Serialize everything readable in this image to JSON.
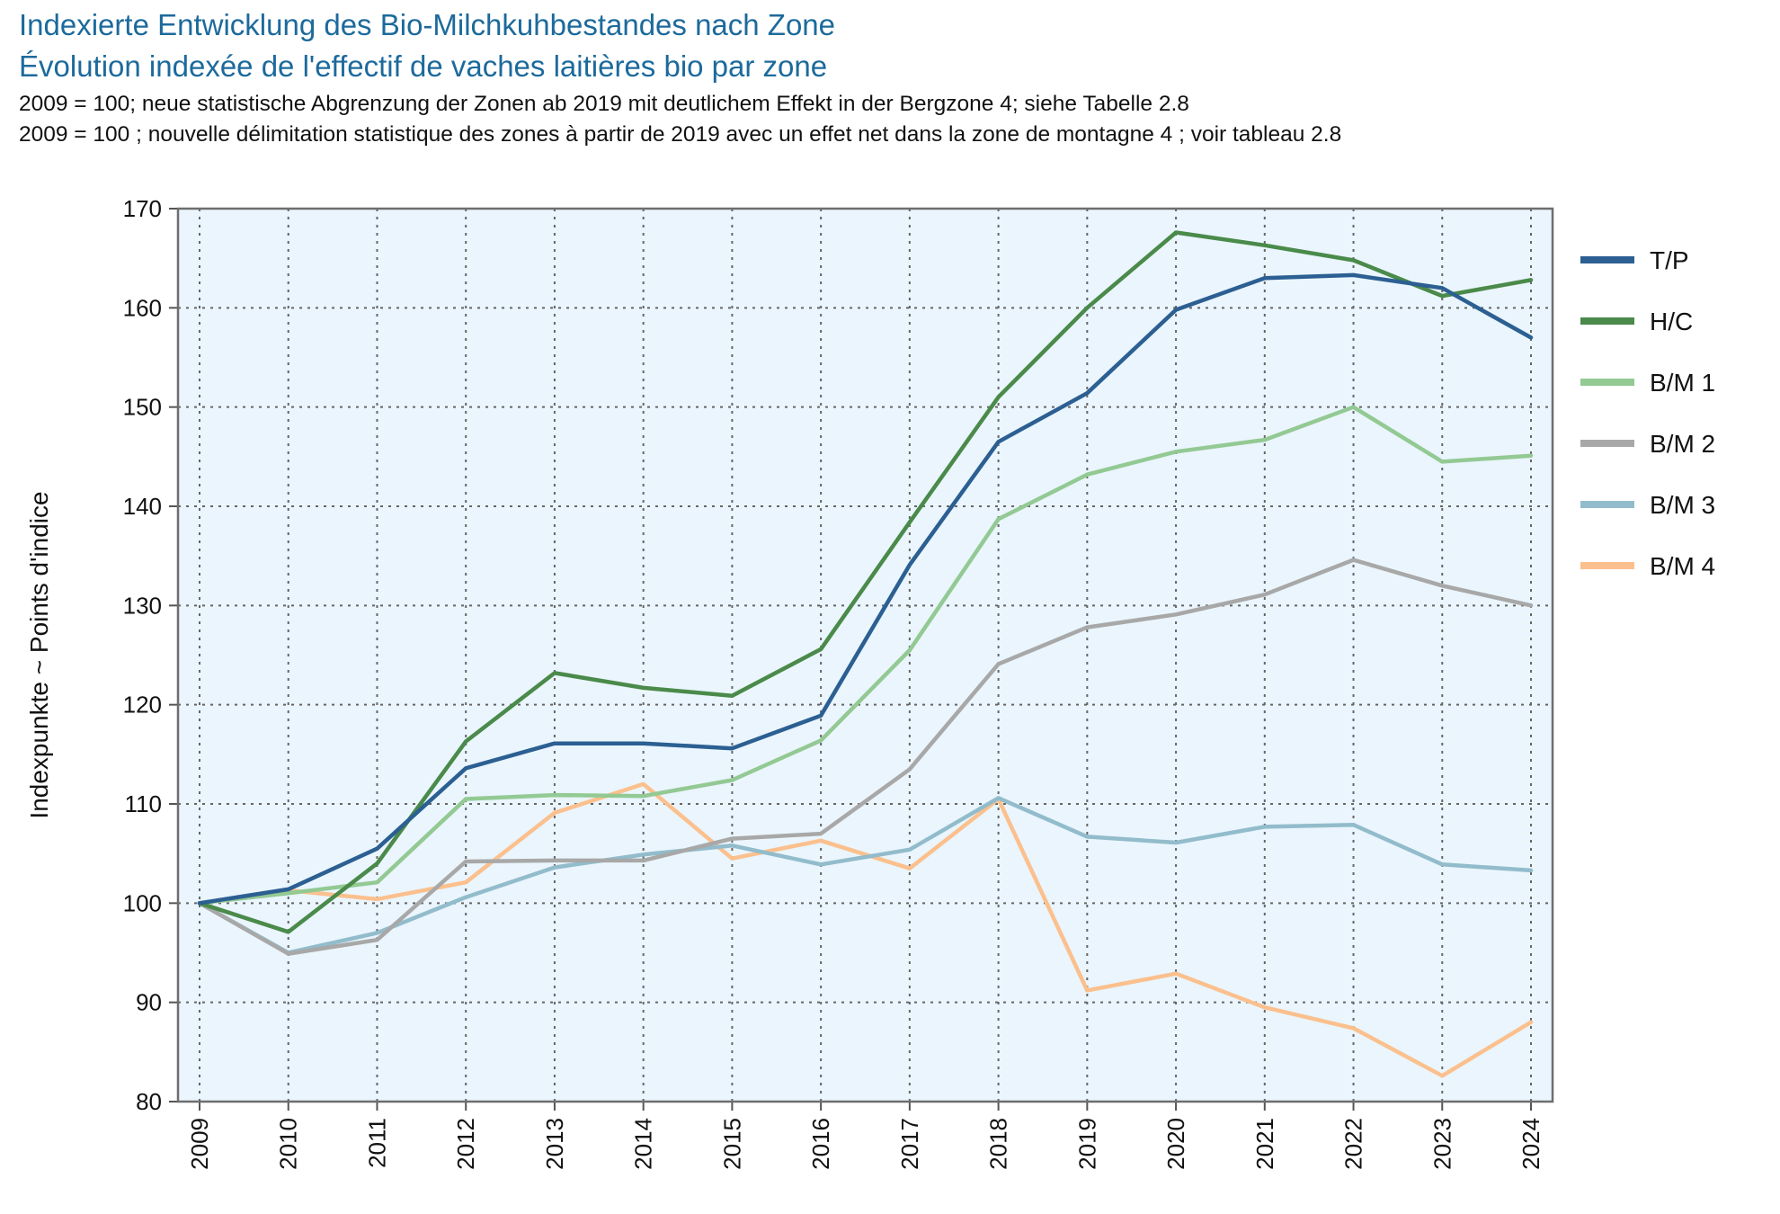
{
  "header": {
    "title_de": "Indexierte Entwicklung des Bio-Milchkuhbestandes nach Zone",
    "title_fr": "Évolution indexée de l'effectif de vaches laitières bio par zone",
    "subtitle_de": "2009 = 100; neue statistische Abgrenzung der Zonen ab 2019 mit deutlichem Effekt in der Bergzone 4; siehe Tabelle 2.8",
    "subtitle_fr": "2009 = 100 ; nouvelle délimitation statistique des zones à partir de 2019 avec un effet net dans la zone de montagne 4 ; voir tableau 2.8"
  },
  "chart_data": {
    "type": "line",
    "ylabel": "Indexpunkte  ~  Points d'indice",
    "ylim": [
      80,
      170
    ],
    "yticks": [
      80,
      90,
      100,
      110,
      120,
      130,
      140,
      150,
      160,
      170
    ],
    "grid": true,
    "legend_position": "right",
    "plot_background": "#eaf5fd",
    "x": [
      "2009",
      "2010",
      "2011",
      "2012",
      "2013",
      "2014",
      "2015",
      "2016",
      "2017",
      "2018",
      "2019",
      "2020",
      "2021",
      "2022",
      "2023",
      "2024"
    ],
    "series": [
      {
        "name": "T/P",
        "color": "#2c5f92",
        "values": [
          100,
          101.4,
          105.5,
          113.6,
          116.1,
          116.1,
          115.6,
          118.9,
          134.1,
          146.5,
          151.4,
          159.8,
          163,
          163.3,
          162,
          157
        ]
      },
      {
        "name": "H/C",
        "color": "#4a8a4a",
        "values": [
          100,
          97.1,
          104,
          116.3,
          123.2,
          121.7,
          120.9,
          125.6,
          138.4,
          151,
          160,
          167.6,
          166.3,
          164.8,
          161.2,
          162.8
        ]
      },
      {
        "name": "B/M 1",
        "color": "#93c993",
        "values": [
          100,
          101,
          102.1,
          110.5,
          110.9,
          110.8,
          112.4,
          116.4,
          125.5,
          138.7,
          143.2,
          145.5,
          146.7,
          150,
          144.5,
          145.1
        ]
      },
      {
        "name": "B/M 2",
        "color": "#a8a8a8",
        "values": [
          100,
          94.9,
          96.3,
          104.2,
          104.3,
          104.3,
          106.5,
          107,
          113.5,
          124.1,
          127.8,
          129.1,
          131.1,
          134.6,
          132,
          130
        ]
      },
      {
        "name": "B/M 3",
        "color": "#92bccb",
        "values": [
          100,
          95,
          97,
          100.6,
          103.6,
          104.9,
          105.8,
          103.9,
          105.4,
          110.6,
          106.7,
          106.1,
          107.7,
          107.9,
          103.9,
          103.3
        ]
      },
      {
        "name": "B/M 4",
        "color": "#fbc08d",
        "values": [
          100,
          101.3,
          100.4,
          102.1,
          109.1,
          112,
          104.5,
          106.3,
          103.5,
          110.5,
          91.2,
          92.9,
          89.5,
          87.4,
          82.6,
          88
        ]
      }
    ]
  }
}
